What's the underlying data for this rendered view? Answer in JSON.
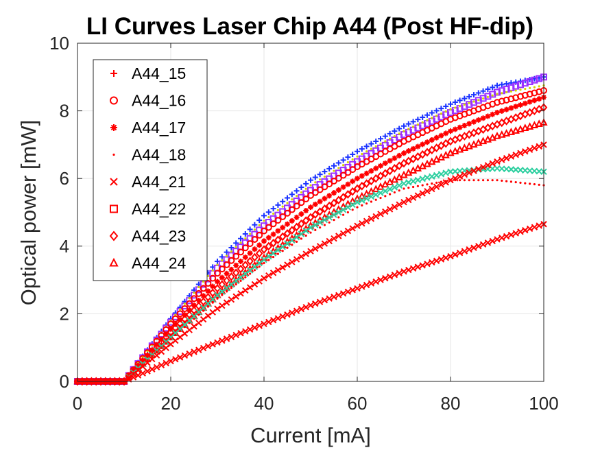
{
  "chart_data": {
    "type": "scatter",
    "title": "LI Curves Laser Chip A44 (Post HF-dip)",
    "xlabel": "Current [mA]",
    "ylabel": "Optical power [mW]",
    "xlim": [
      0,
      100
    ],
    "ylim": [
      0,
      10
    ],
    "xticks": [
      0,
      20,
      40,
      60,
      80,
      100
    ],
    "yticks": [
      0,
      2,
      4,
      6,
      8,
      10
    ],
    "grid": true,
    "legend_position": "top-left",
    "legend": [
      {
        "name": "A44_15",
        "marker": "plus",
        "color": "#ff0000"
      },
      {
        "name": "A44_16",
        "marker": "circle",
        "color": "#ff0000"
      },
      {
        "name": "A44_17",
        "marker": "asterisk",
        "color": "#ff0000"
      },
      {
        "name": "A44_18",
        "marker": "dot",
        "color": "#ff0000"
      },
      {
        "name": "A44_21",
        "marker": "x",
        "color": "#ff0000"
      },
      {
        "name": "A44_22",
        "marker": "square",
        "color": "#ff0000"
      },
      {
        "name": "A44_23",
        "marker": "diamond",
        "color": "#ff0000"
      },
      {
        "name": "A44_24",
        "marker": "triangle",
        "color": "#ff0000"
      }
    ],
    "curves": [
      {
        "color": "#1a33ff",
        "marker": "plus",
        "points": [
          [
            0,
            0
          ],
          [
            10,
            0
          ],
          [
            20,
            1.85
          ],
          [
            30,
            3.55
          ],
          [
            40,
            4.9
          ],
          [
            50,
            5.95
          ],
          [
            60,
            6.8
          ],
          [
            70,
            7.55
          ],
          [
            80,
            8.2
          ],
          [
            90,
            8.75
          ],
          [
            100,
            9.0
          ]
        ]
      },
      {
        "color": "#9b30ff",
        "marker": "square",
        "points": [
          [
            0,
            0
          ],
          [
            10,
            0
          ],
          [
            20,
            1.75
          ],
          [
            30,
            3.35
          ],
          [
            40,
            4.6
          ],
          [
            50,
            5.65
          ],
          [
            60,
            6.5
          ],
          [
            70,
            7.3
          ],
          [
            80,
            7.95
          ],
          [
            90,
            8.55
          ],
          [
            100,
            9.0
          ]
        ]
      },
      {
        "color": "#d4d400",
        "marker": "dot",
        "points": [
          [
            0,
            0
          ],
          [
            10,
            0
          ],
          [
            20,
            1.8
          ],
          [
            30,
            3.45
          ],
          [
            40,
            4.75
          ],
          [
            50,
            5.8
          ],
          [
            60,
            6.65
          ],
          [
            70,
            7.4
          ],
          [
            80,
            8.05
          ],
          [
            90,
            8.5
          ],
          [
            100,
            8.75
          ]
        ]
      },
      {
        "color": "#ff0000",
        "marker": "circle",
        "points": [
          [
            0,
            0
          ],
          [
            10,
            0
          ],
          [
            20,
            1.7
          ],
          [
            30,
            3.2
          ],
          [
            40,
            4.45
          ],
          [
            50,
            5.5
          ],
          [
            60,
            6.35
          ],
          [
            70,
            7.1
          ],
          [
            80,
            7.75
          ],
          [
            90,
            8.25
          ],
          [
            100,
            8.6
          ]
        ]
      },
      {
        "color": "#ff0000",
        "marker": "asterisk",
        "points": [
          [
            0,
            0
          ],
          [
            10,
            0
          ],
          [
            20,
            1.55
          ],
          [
            30,
            2.95
          ],
          [
            40,
            4.15
          ],
          [
            50,
            5.15
          ],
          [
            60,
            6.0
          ],
          [
            70,
            6.75
          ],
          [
            80,
            7.4
          ],
          [
            90,
            7.95
          ],
          [
            100,
            8.4
          ]
        ]
      },
      {
        "color": "#ff0000",
        "marker": "diamond",
        "points": [
          [
            0,
            0
          ],
          [
            10,
            0
          ],
          [
            20,
            1.45
          ],
          [
            30,
            2.75
          ],
          [
            40,
            3.9
          ],
          [
            50,
            4.85
          ],
          [
            60,
            5.7
          ],
          [
            70,
            6.45
          ],
          [
            80,
            7.1
          ],
          [
            90,
            7.6
          ],
          [
            100,
            8.1
          ]
        ]
      },
      {
        "color": "#ff0000",
        "marker": "triangle",
        "points": [
          [
            0,
            0
          ],
          [
            10,
            0
          ],
          [
            20,
            1.3
          ],
          [
            30,
            2.55
          ],
          [
            40,
            3.65
          ],
          [
            50,
            4.6
          ],
          [
            60,
            5.4
          ],
          [
            70,
            6.1
          ],
          [
            80,
            6.75
          ],
          [
            90,
            7.25
          ],
          [
            100,
            7.65
          ]
        ]
      },
      {
        "color": "#2ecfa0",
        "marker": "x",
        "points": [
          [
            0,
            0
          ],
          [
            10,
            0
          ],
          [
            20,
            1.3
          ],
          [
            30,
            2.55
          ],
          [
            40,
            3.6
          ],
          [
            50,
            4.55
          ],
          [
            60,
            5.3
          ],
          [
            70,
            5.85
          ],
          [
            80,
            6.2
          ],
          [
            90,
            6.3
          ],
          [
            100,
            6.2
          ]
        ]
      },
      {
        "color": "#ff0000",
        "marker": "dot",
        "points": [
          [
            0,
            0
          ],
          [
            10,
            0
          ],
          [
            20,
            1.25
          ],
          [
            30,
            2.45
          ],
          [
            40,
            3.5
          ],
          [
            50,
            4.4
          ],
          [
            60,
            5.15
          ],
          [
            70,
            5.7
          ],
          [
            80,
            5.95
          ],
          [
            90,
            5.95
          ],
          [
            100,
            5.8
          ]
        ]
      },
      {
        "color": "#ff0000",
        "marker": "x",
        "points": [
          [
            0,
            0
          ],
          [
            10,
            0
          ],
          [
            20,
            1.1
          ],
          [
            30,
            2.15
          ],
          [
            40,
            3.05
          ],
          [
            50,
            3.85
          ],
          [
            60,
            4.6
          ],
          [
            70,
            5.3
          ],
          [
            80,
            5.95
          ],
          [
            90,
            6.5
          ],
          [
            100,
            7.0
          ]
        ]
      },
      {
        "color": "#ff0000",
        "marker": "x",
        "points": [
          [
            0,
            0
          ],
          [
            10,
            0
          ],
          [
            20,
            0.6
          ],
          [
            30,
            1.15
          ],
          [
            40,
            1.7
          ],
          [
            50,
            2.25
          ],
          [
            60,
            2.75
          ],
          [
            70,
            3.25
          ],
          [
            80,
            3.7
          ],
          [
            90,
            4.2
          ],
          [
            100,
            4.65
          ]
        ]
      }
    ]
  }
}
